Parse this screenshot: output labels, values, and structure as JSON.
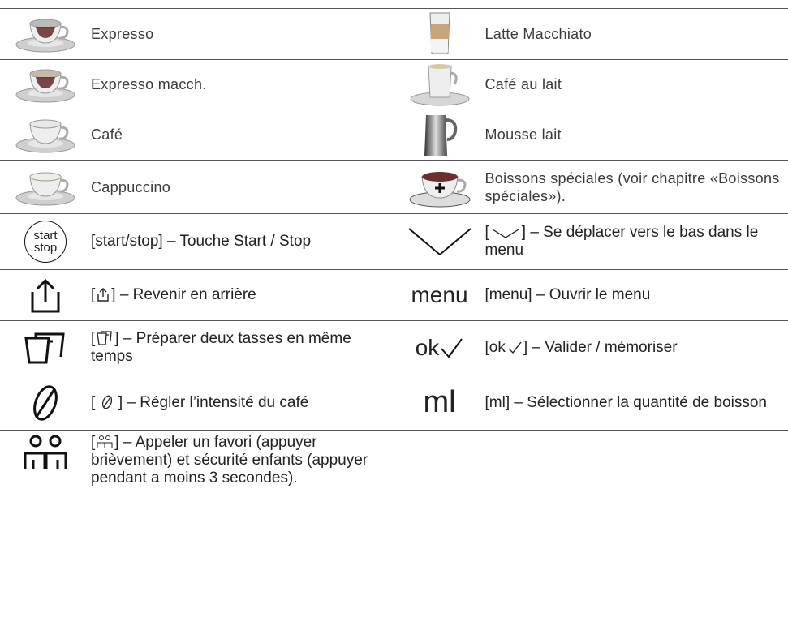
{
  "left": [
    {
      "text": [
        "Expresso"
      ]
    },
    {
      "text": [
        "Expresso macch."
      ]
    },
    {
      "text": [
        "Café"
      ]
    },
    {
      "text": [
        "Cappuccino"
      ]
    },
    {
      "icon_label": [
        "start",
        "stop"
      ],
      "text": [
        "[start/stop] – Touche Start / Stop"
      ]
    },
    {
      "text": [
        "[",
        "] – Revenir en arrière"
      ]
    },
    {
      "text": [
        "[",
        "] – Préparer deux tasses en même temps"
      ]
    },
    {
      "text": [
        "[ ",
        " ] – Régler l’intensité du café"
      ]
    },
    {
      "text": [
        "[",
        "] – Appeler un favori (appuyer brièvement) et sécurité enfants (appuyer pendant a moins 3 secondes)."
      ]
    }
  ],
  "right": [
    {
      "text": [
        "Latte Macchiato"
      ]
    },
    {
      "text": [
        "Café au lait"
      ]
    },
    {
      "text": [
        "Mousse lait"
      ]
    },
    {
      "text": [
        "Boissons spéciales (voir chapitre «Boissons spéciales»)."
      ]
    },
    {
      "text": [
        "[",
        "] – Se déplacer vers le bas dans le menu"
      ]
    },
    {
      "icon_label": [
        "menu"
      ],
      "text": [
        "[menu] – Ouvrir le menu"
      ]
    },
    {
      "icon_label": [
        "ok"
      ],
      "text": [
        "[ok",
        "] – Valider / mémoriser"
      ]
    },
    {
      "icon_label": [
        "ml"
      ],
      "text": [
        "[ml] – Sélectionner la quantité de boisson"
      ]
    }
  ]
}
